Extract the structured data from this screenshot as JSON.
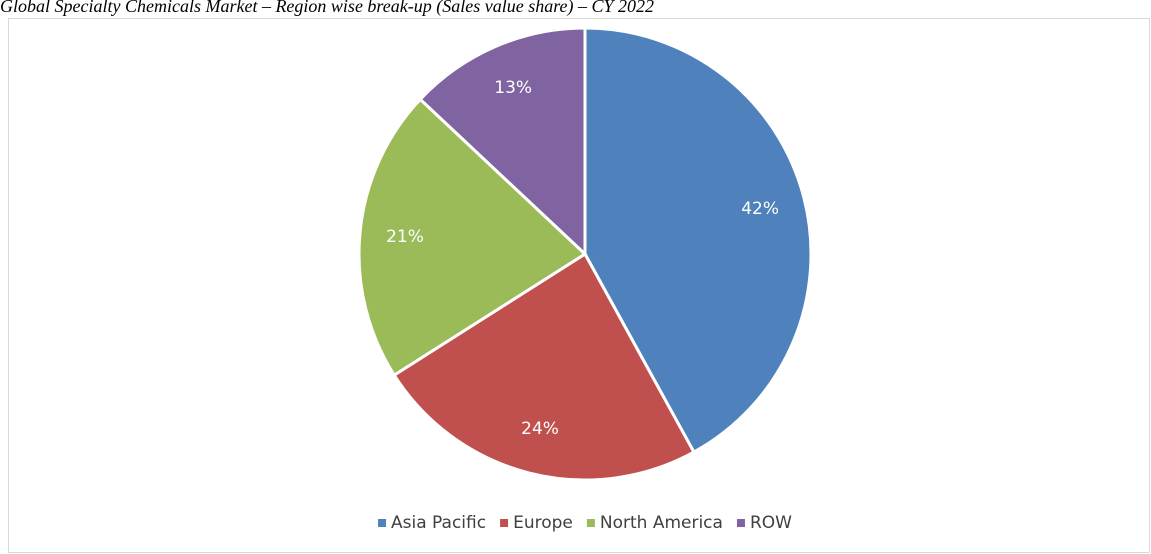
{
  "chart_data": {
    "type": "pie",
    "title": "Global Specialty Chemicals Market – Region wise break-up (Sales value share) – CY 2022",
    "categories": [
      "Asia Pacific",
      "Europe",
      "North America",
      "ROW"
    ],
    "values": [
      42,
      24,
      21,
      13
    ],
    "value_labels": [
      "42%",
      "24%",
      "21%",
      "13%"
    ],
    "colors": [
      "#4f81bd",
      "#c0504d",
      "#9bbb59",
      "#8064a2"
    ],
    "legend": "bottom"
  }
}
